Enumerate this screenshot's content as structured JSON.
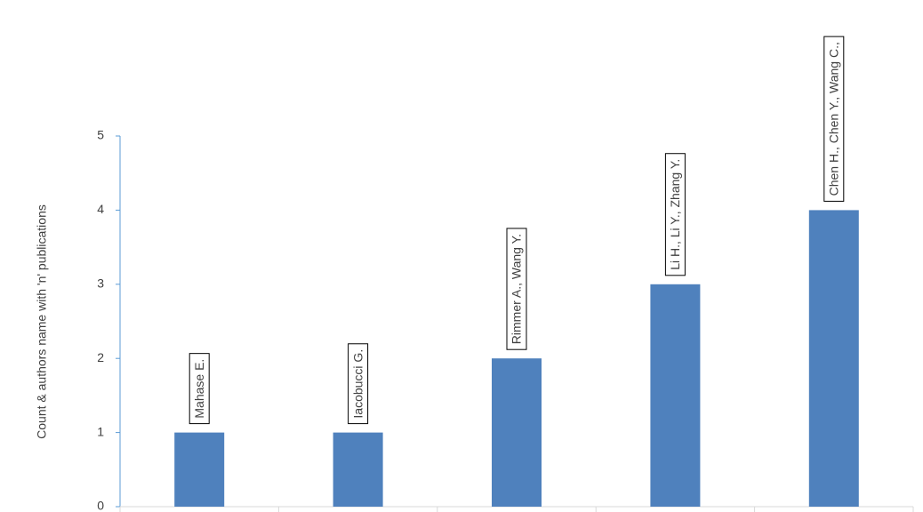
{
  "chart_data": {
    "type": "bar",
    "y_label": "Count & authors name with 'n' publications",
    "categories": [
      null,
      null,
      null,
      null,
      null
    ],
    "values": [
      1,
      1,
      2,
      3,
      4
    ],
    "bar_labels": [
      "Mahase E.",
      "Iacobucci G.",
      "Rimmer A., Wang Y.",
      "Li H., Li Y., Zhang Y.",
      "Chen H., Chen Y., Wang C.,"
    ],
    "color": "#4f81bd",
    "ylim": [
      0,
      5
    ],
    "yticks": [
      0,
      1,
      2,
      3,
      4,
      5
    ],
    "grid": false
  }
}
